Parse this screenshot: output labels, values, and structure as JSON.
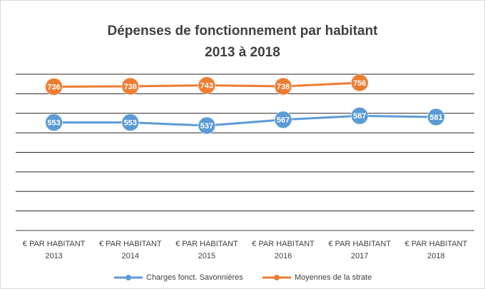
{
  "chart_data": {
    "type": "line",
    "title": [
      "Dépenses de fonctionnement par habitant",
      "2013 à 2018"
    ],
    "categories": [
      [
        "€ PAR HABITANT",
        "2013"
      ],
      [
        "€ PAR HABITANT",
        "2014"
      ],
      [
        "€ PAR HABITANT",
        "2015"
      ],
      [
        "€ PAR HABITANT",
        "2016"
      ],
      [
        "€ PAR HABITANT",
        "2017"
      ],
      [
        "€ PAR HABITANT",
        "2018"
      ]
    ],
    "series": [
      {
        "name": "Charges fonct. Savonnières",
        "color": "#5b9bd5",
        "values": [
          553,
          553,
          537,
          567,
          587,
          581
        ]
      },
      {
        "name": "Moyennes de la strate",
        "color": "#ed7d31",
        "values": [
          736,
          738,
          743,
          738,
          756,
          null
        ]
      }
    ],
    "ylim": [
      0,
      800
    ],
    "yticks": [
      0,
      100,
      200,
      300,
      400,
      500,
      600,
      700,
      800
    ],
    "grid": true,
    "legend": "bottom"
  }
}
